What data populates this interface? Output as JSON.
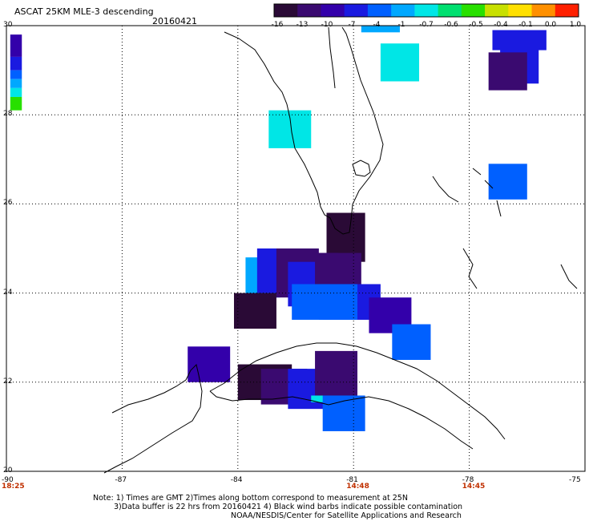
{
  "header": {
    "title": "ASCAT 25KM MLE-3 descending",
    "date": "20160421"
  },
  "colorbar": {
    "labels": [
      "-16",
      "-13",
      "-10",
      "-7",
      "-4",
      "-1",
      "-0.7",
      "-0.6",
      "-0.5",
      "-0.4",
      "-0.1",
      "0.0",
      "1.0"
    ],
    "colors": [
      "#2a0a36",
      "#3a0a70",
      "#3300aa",
      "#1a1ae0",
      "#0060ff",
      "#00a8ff",
      "#00e6e6",
      "#00e070",
      "#28e000",
      "#c8e000",
      "#ffe000",
      "#ff9000",
      "#ff2000"
    ]
  },
  "axes": {
    "y_ticks": [
      "30",
      "28",
      "26",
      "24",
      "22",
      "20"
    ],
    "x_ticks": [
      "-90",
      "-87",
      "-84",
      "-81",
      "-78",
      "-75"
    ],
    "time_labels": [
      {
        "text": "18:25",
        "lon": -90
      },
      {
        "text": "14:48",
        "lon": -81
      },
      {
        "text": "14:45",
        "lon": -78
      }
    ],
    "time_color": "#c03000"
  },
  "notes": [
    "Note: 1) Times are GMT 2)Times along bottom correspond to measurement at 25N",
    "3)Data buffer is 22 hrs from 20160421 4) Black wind barbs indicate possible contamination",
    "NOAA/NESDIS/Center for Satellite Applications and Research"
  ],
  "map_data": {
    "lon_range": [
      -90,
      -75
    ],
    "lat_range": [
      20,
      30
    ],
    "grid": true,
    "patches": [
      {
        "lon": -89.9,
        "lat": 29.8,
        "w": 0.3,
        "h": 0.5,
        "color": "#3300aa"
      },
      {
        "lon": -89.9,
        "lat": 29.3,
        "w": 0.3,
        "h": 0.3,
        "color": "#1a1ae0"
      },
      {
        "lon": -89.9,
        "lat": 29.0,
        "w": 0.3,
        "h": 0.2,
        "color": "#0060ff"
      },
      {
        "lon": -89.9,
        "lat": 28.8,
        "w": 0.3,
        "h": 0.2,
        "color": "#00a8ff"
      },
      {
        "lon": -89.9,
        "lat": 28.6,
        "w": 0.3,
        "h": 0.2,
        "color": "#00e6e6"
      },
      {
        "lon": -89.9,
        "lat": 28.4,
        "w": 0.3,
        "h": 0.3,
        "color": "#28e000"
      },
      {
        "lon": -80.8,
        "lat": 30.0,
        "w": 1.0,
        "h": 0.15,
        "color": "#00a8ff"
      },
      {
        "lon": -80.3,
        "lat": 29.6,
        "w": 1.0,
        "h": 0.85,
        "color": "#00e6e6"
      },
      {
        "lon": -77.4,
        "lat": 29.9,
        "w": 1.4,
        "h": 0.45,
        "color": "#1a1ae0"
      },
      {
        "lon": -77.2,
        "lat": 29.5,
        "w": 1.0,
        "h": 0.8,
        "color": "#1a1ae0"
      },
      {
        "lon": -77.5,
        "lat": 29.4,
        "w": 1.0,
        "h": 0.85,
        "color": "#3a0a70"
      },
      {
        "lon": -83.2,
        "lat": 28.1,
        "w": 1.1,
        "h": 0.85,
        "color": "#00e6e6"
      },
      {
        "lon": -77.5,
        "lat": 26.9,
        "w": 1.0,
        "h": 0.8,
        "color": "#0060ff"
      },
      {
        "lon": -81.7,
        "lat": 25.8,
        "w": 1.0,
        "h": 1.1,
        "color": "#2a0a36"
      },
      {
        "lon": -83.8,
        "lat": 24.8,
        "w": 0.9,
        "h": 0.9,
        "color": "#00a8ff"
      },
      {
        "lon": -83.5,
        "lat": 25.0,
        "w": 1.0,
        "h": 1.0,
        "color": "#1a1ae0"
      },
      {
        "lon": -82.4,
        "lat": 24.9,
        "w": 1.0,
        "h": 1.4,
        "color": "#3300aa"
      },
      {
        "lon": -83.0,
        "lat": 25.0,
        "w": 1.1,
        "h": 1.1,
        "color": "#3a0a70"
      },
      {
        "lon": -82.7,
        "lat": 24.7,
        "w": 1.0,
        "h": 1.0,
        "color": "#1a1ae0"
      },
      {
        "lon": -82.0,
        "lat": 24.9,
        "w": 1.2,
        "h": 0.9,
        "color": "#3a0a70"
      },
      {
        "lon": -84.1,
        "lat": 24.0,
        "w": 1.1,
        "h": 0.8,
        "color": "#2a0a36"
      },
      {
        "lon": -82.6,
        "lat": 24.2,
        "w": 1.0,
        "h": 0.8,
        "color": "#0060ff"
      },
      {
        "lon": -81.8,
        "lat": 24.2,
        "w": 1.5,
        "h": 0.8,
        "color": "#1a1ae0"
      },
      {
        "lon": -81.9,
        "lat": 24.2,
        "w": 1.0,
        "h": 0.8,
        "color": "#0060ff"
      },
      {
        "lon": -80.6,
        "lat": 23.9,
        "w": 1.1,
        "h": 0.8,
        "color": "#3300aa"
      },
      {
        "lon": -80.0,
        "lat": 23.3,
        "w": 1.0,
        "h": 0.8,
        "color": "#0060ff"
      },
      {
        "lon": -85.3,
        "lat": 22.8,
        "w": 1.1,
        "h": 0.8,
        "color": "#3300aa"
      },
      {
        "lon": -84.0,
        "lat": 22.4,
        "w": 1.4,
        "h": 0.8,
        "color": "#2a0a36"
      },
      {
        "lon": -83.4,
        "lat": 22.3,
        "w": 1.2,
        "h": 0.8,
        "color": "#3a0a70"
      },
      {
        "lon": -82.7,
        "lat": 22.3,
        "w": 1.3,
        "h": 0.9,
        "color": "#1a1ae0"
      },
      {
        "lon": -82.0,
        "lat": 22.7,
        "w": 1.1,
        "h": 1.1,
        "color": "#3a0a70"
      },
      {
        "lon": -82.1,
        "lat": 21.7,
        "w": 1.1,
        "h": 0.15,
        "color": "#00e6e6"
      },
      {
        "lon": -81.8,
        "lat": 21.7,
        "w": 1.1,
        "h": 0.8,
        "color": "#0060ff"
      }
    ]
  }
}
